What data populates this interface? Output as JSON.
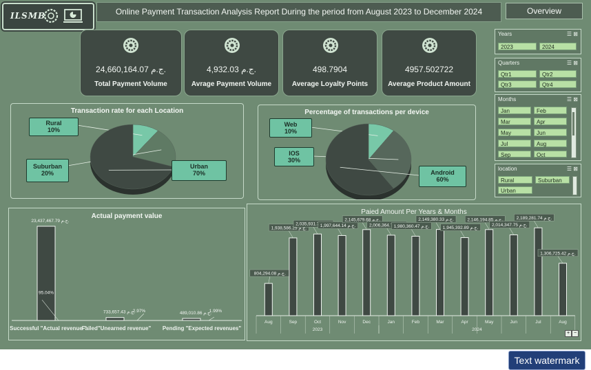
{
  "header": {
    "logo_text": "ILSMB",
    "title": "Online Payment Transaction Analysis Report  During the period from August 2023 to December 2024",
    "overview_button": "Overview",
    "icons": [
      "gear-icon",
      "dashboard-icon"
    ]
  },
  "kpis": [
    {
      "value": "24,660,164.07 ج.م.",
      "label": "Total Payment Volume"
    },
    {
      "value": "4,932.03 ج.م.",
      "label": "Avrage Payment Volume"
    },
    {
      "value": "498.7904",
      "label": "Average Loyalty Points"
    },
    {
      "value": "4957.502722",
      "label": "Average Product Amount"
    }
  ],
  "slicers": {
    "years": {
      "title": "Years",
      "items": [
        "2023",
        "2024"
      ]
    },
    "quarters": {
      "title": "Quarters",
      "items": [
        "Qtr1",
        "Qtr2",
        "Qtr3",
        "Qtr4"
      ]
    },
    "months": {
      "title": "Months",
      "items": [
        "Jan",
        "Feb",
        "Mar",
        "Apr",
        "May",
        "Jun",
        "Jul",
        "Aug",
        "Sep",
        "Oct"
      ]
    },
    "location": {
      "title": "location",
      "items": [
        "Rural",
        "Suburban",
        "Urban"
      ]
    }
  },
  "watermark": "Text watermark",
  "chart_data": [
    {
      "type": "pie",
      "title": "Transaction rate for each Location",
      "categories": [
        "Rural",
        "Suburban",
        "Urban"
      ],
      "values": [
        10,
        20,
        70
      ],
      "labels": [
        "10%",
        "20%",
        "70%"
      ]
    },
    {
      "type": "pie",
      "title": "Percentage of transactions per device",
      "categories": [
        "Web",
        "IOS",
        "Android"
      ],
      "values": [
        10,
        30,
        60
      ],
      "labels": [
        "10%",
        "30%",
        "60%"
      ]
    },
    {
      "type": "bar",
      "title": "Actual payment value",
      "categories": [
        "Successful \"Actual revenue \"",
        "Failed\"Unearned revenue\"",
        "Pending \"Expected revenues\""
      ],
      "values": [
        23437467.79,
        733657.43,
        489010.86
      ],
      "value_labels": [
        "23,437,467.79 ج.م.",
        "733,657.43 ج.م.",
        "489,010.86 ج.م."
      ],
      "percent_labels": [
        "95.04%",
        "2.97%",
        "1.99%"
      ]
    },
    {
      "type": "bar",
      "title": "Paied Amount Per Years & Months",
      "categories": [
        "Aug",
        "Sep",
        "Oct",
        "Nov",
        "Dec",
        "Jan",
        "Feb",
        "Mar",
        "Apr",
        "May",
        "Jun",
        "Jul",
        "Aug"
      ],
      "groups": [
        {
          "label": "2023",
          "count": 5
        },
        {
          "label": "2024",
          "count": 8
        }
      ],
      "values": [
        804294.08,
        1938586.25,
        2035931.71,
        1997644.14,
        2145679.68,
        2006364.76,
        1980360.47,
        2149380.33,
        1945392.89,
        2146194.85,
        2014347.75,
        2189281.74,
        1306725.42
      ],
      "value_labels": [
        "804,294.08 ج.م.",
        "1,938,586.25 ج.م.",
        "2,035,931.71 ج.م.",
        "1,997,644.14 ج.م.",
        "2,145,679.68 ج.م.",
        "2,006,364.76 ج.م.",
        "1,980,360.47 ج.م.",
        "2,149,380.33 ج.م.",
        "1,945,392.89 ج.م.",
        "2,146,194.85 ج.م.",
        "2,014,347.75 ج.م.",
        "2,189,281.74 ج.م.",
        "1,306,725.42 ج.م."
      ]
    }
  ]
}
